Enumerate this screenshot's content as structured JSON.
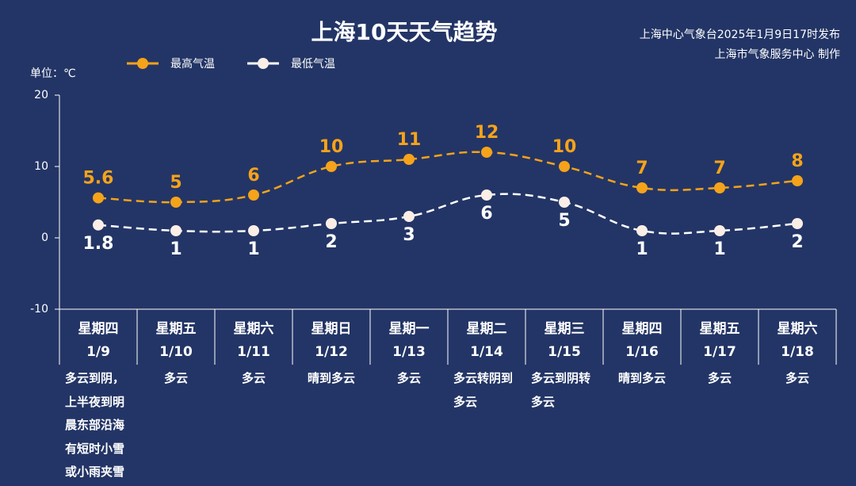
{
  "chart_data": {
    "type": "line",
    "title": "上海10天天气趋势",
    "notes": [
      "上海中心气象台2025年1月9日17时发布",
      "上海市气象服务中心 制作"
    ],
    "unit_label": "单位：℃",
    "categories": [
      "星期四",
      "星期五",
      "星期六",
      "星期日",
      "星期一",
      "星期二",
      "星期三",
      "星期四",
      "星期五",
      "星期六"
    ],
    "dates": [
      "1/9",
      "1/10",
      "1/11",
      "1/12",
      "1/13",
      "1/14",
      "1/15",
      "1/16",
      "1/17",
      "1/18"
    ],
    "weather": [
      "多云到阴，上半夜到明晨东部沿海有短时小雪或小雨夹雪",
      "多云",
      "多云",
      "晴到多云",
      "多云",
      "多云转阴到多云",
      "多云到阴转多云",
      "晴到多云",
      "多云",
      "多云"
    ],
    "series": [
      {
        "name": "最高气温",
        "color": "#f5a31a",
        "values": [
          5.6,
          5,
          6,
          10,
          11,
          12,
          10,
          7,
          7,
          8
        ]
      },
      {
        "name": "最低气温",
        "color": "#ffffff",
        "values": [
          1.8,
          1,
          1,
          2,
          3,
          6,
          5,
          1,
          1,
          2
        ]
      }
    ],
    "ylim": [
      -10,
      20
    ],
    "yticks": [
      -10,
      0,
      10,
      20
    ],
    "grid": false
  }
}
